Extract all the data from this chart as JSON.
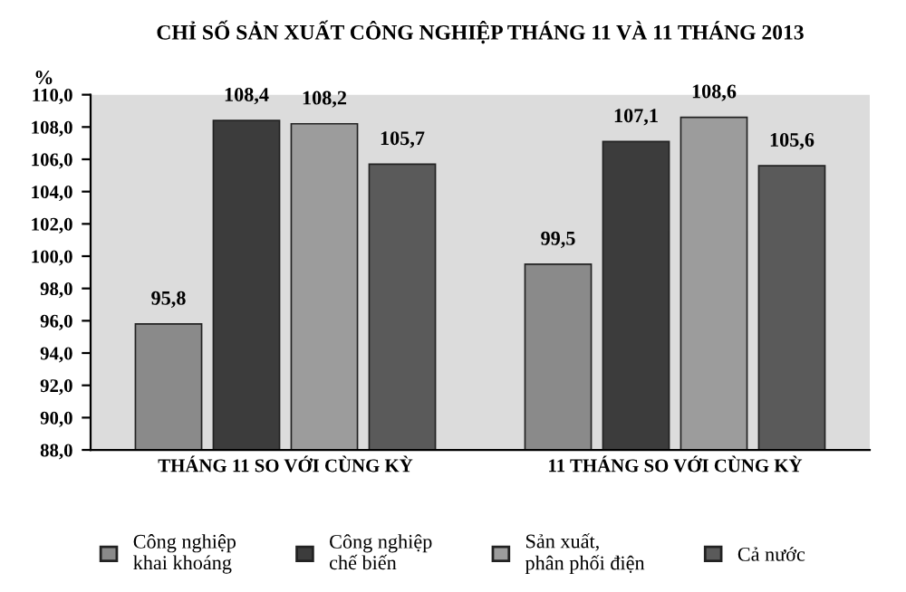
{
  "chart_data": {
    "type": "bar",
    "title": "CHỈ SỐ SẢN XUẤT CÔNG NGHIỆP THÁNG 11 VÀ 11 THÁNG 2013",
    "ylabel": "%",
    "categories": [
      "THÁNG 11 SO VỚI CÙNG KỲ",
      "11 THÁNG SO VỚI CÙNG KỲ"
    ],
    "series": [
      {
        "name": "Công nghiệp\nkhai khoáng",
        "color": "#8a8a8a",
        "values": [
          95.8,
          99.5
        ],
        "value_labels": [
          "95,8",
          "99,5"
        ]
      },
      {
        "name": "Công nghiệp\nchế biến",
        "color": "#3c3c3c",
        "values": [
          108.4,
          107.1
        ],
        "value_labels": [
          "108,4",
          "107,1"
        ]
      },
      {
        "name": "Sản xuất,\nphân phối điện",
        "color": "#9c9c9c",
        "values": [
          108.2,
          108.6
        ],
        "value_labels": [
          "108,2",
          "108,6"
        ]
      },
      {
        "name": "Cả nước",
        "color": "#5a5a5a",
        "values": [
          105.7,
          105.6
        ],
        "value_labels": [
          "105,7",
          "105,6"
        ]
      }
    ],
    "ylim": [
      88.0,
      110.0
    ],
    "yticks": [
      {
        "value": 88.0,
        "label": "88,0"
      },
      {
        "value": 90.0,
        "label": "90,0"
      },
      {
        "value": 92.0,
        "label": "92,0"
      },
      {
        "value": 94.0,
        "label": "94,0"
      },
      {
        "value": 96.0,
        "label": "96,0"
      },
      {
        "value": 98.0,
        "label": "98,0"
      },
      {
        "value": 100.0,
        "label": "100,0"
      },
      {
        "value": 102.0,
        "label": "102,0"
      },
      {
        "value": 104.0,
        "label": "104,0"
      },
      {
        "value": 106.0,
        "label": "106,0"
      },
      {
        "value": 108.0,
        "label": "108,0"
      },
      {
        "value": 110.0,
        "label": "110,0"
      }
    ],
    "grid": false,
    "legend": "bottom"
  }
}
